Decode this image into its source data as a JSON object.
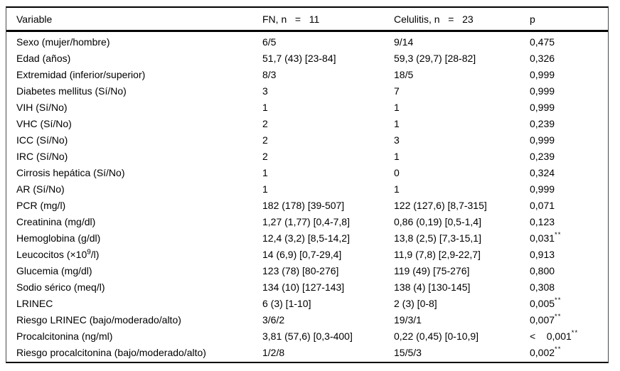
{
  "table": {
    "columns": {
      "variable": "Variable",
      "fn": "FN, n   =   11",
      "celulitis": "Celulitis, n   =   23",
      "p": "p"
    },
    "rows": [
      {
        "variable": "Sexo (mujer/hombre)",
        "variable_sup": "",
        "variable_post": "",
        "fn": "6/5",
        "celulitis": "9/14",
        "p": "0,475",
        "p_sup": ""
      },
      {
        "variable": "Edad (años)",
        "variable_sup": "",
        "variable_post": "",
        "fn": "51,7 (43) [23-84]",
        "celulitis": "59,3 (29,7) [28-82]",
        "p": "0,326",
        "p_sup": ""
      },
      {
        "variable": "Extremidad (inferior/superior)",
        "variable_sup": "",
        "variable_post": "",
        "fn": "8/3",
        "celulitis": "18/5",
        "p": "0,999",
        "p_sup": ""
      },
      {
        "variable": "Diabetes mellitus (Sí/No)",
        "variable_sup": "",
        "variable_post": "",
        "fn": "3",
        "celulitis": "7",
        "p": "0,999",
        "p_sup": ""
      },
      {
        "variable": "VIH (Sí/No)",
        "variable_sup": "",
        "variable_post": "",
        "fn": "1",
        "celulitis": "1",
        "p": "0,999",
        "p_sup": ""
      },
      {
        "variable": "VHC (Sí/No)",
        "variable_sup": "",
        "variable_post": "",
        "fn": "2",
        "celulitis": "1",
        "p": "0,239",
        "p_sup": ""
      },
      {
        "variable": "ICC (Sí/No)",
        "variable_sup": "",
        "variable_post": "",
        "fn": "2",
        "celulitis": "3",
        "p": "0,999",
        "p_sup": ""
      },
      {
        "variable": "IRC (Sí/No)",
        "variable_sup": "",
        "variable_post": "",
        "fn": "2",
        "celulitis": "1",
        "p": "0,239",
        "p_sup": ""
      },
      {
        "variable": "Cirrosis hepática (Sí/No)",
        "variable_sup": "",
        "variable_post": "",
        "fn": "1",
        "celulitis": "0",
        "p": "0,324",
        "p_sup": ""
      },
      {
        "variable": "AR (Sí/No)",
        "variable_sup": "",
        "variable_post": "",
        "fn": "1",
        "celulitis": "1",
        "p": "0,999",
        "p_sup": ""
      },
      {
        "variable": "PCR (mg/l)",
        "variable_sup": "",
        "variable_post": "",
        "fn": "182 (178) [39-507]",
        "celulitis": "122 (127,6) [8,7-315]",
        "p": "0,071",
        "p_sup": ""
      },
      {
        "variable": "Creatinina (mg/dl)",
        "variable_sup": "",
        "variable_post": "",
        "fn": "1,27 (1,77) [0,4-7,8]",
        "celulitis": "0,86 (0,19) [0,5-1,4]",
        "p": "0,123",
        "p_sup": ""
      },
      {
        "variable": "Hemoglobina (g/dl)",
        "variable_sup": "",
        "variable_post": "",
        "fn": "12,4 (3,2) [8,5-14,2]",
        "celulitis": "13,8 (2,5) [7,3-15,1]",
        "p": "0,031",
        "p_sup": "**"
      },
      {
        "variable": "Leucocitos (×10",
        "variable_sup": "9",
        "variable_post": "/l)",
        "fn": "14 (6,9) [0,7-29,4]",
        "celulitis": "11,9 (7,8) [2,9-22,7]",
        "p": "0,913",
        "p_sup": ""
      },
      {
        "variable": "Glucemia (mg/dl)",
        "variable_sup": "",
        "variable_post": "",
        "fn": "123 (78) [80-276]",
        "celulitis": "119 (49) [75-276]",
        "p": "0,800",
        "p_sup": ""
      },
      {
        "variable": "Sodio sérico (meq/l)",
        "variable_sup": "",
        "variable_post": "",
        "fn": "134 (10) [127-143]",
        "celulitis": "138 (4) [130-145]",
        "p": "0,308",
        "p_sup": ""
      },
      {
        "variable": "LRINEC",
        "variable_sup": "",
        "variable_post": "",
        "fn": "6 (3) [1-10]",
        "celulitis": "2 (3) [0-8]",
        "p": "0,005",
        "p_sup": "**"
      },
      {
        "variable": "Riesgo LRINEC (bajo/moderado/alto)",
        "variable_sup": "",
        "variable_post": "",
        "fn": "3/6/2",
        "celulitis": "19/3/1",
        "p": "0,007",
        "p_sup": "**"
      },
      {
        "variable": "Procalcitonina (ng/ml)",
        "variable_sup": "",
        "variable_post": "",
        "fn": "3,81 (57,6) [0,3-400]",
        "celulitis": "0,22 (0,45) [0-10,9]",
        "p": "<    0,001",
        "p_sup": "**"
      },
      {
        "variable": "Riesgo procalcitonina (bajo/moderado/alto)",
        "variable_sup": "",
        "variable_post": "",
        "fn": "1/2/8",
        "celulitis": "15/5/3",
        "p": "0,002",
        "p_sup": "**"
      }
    ]
  }
}
